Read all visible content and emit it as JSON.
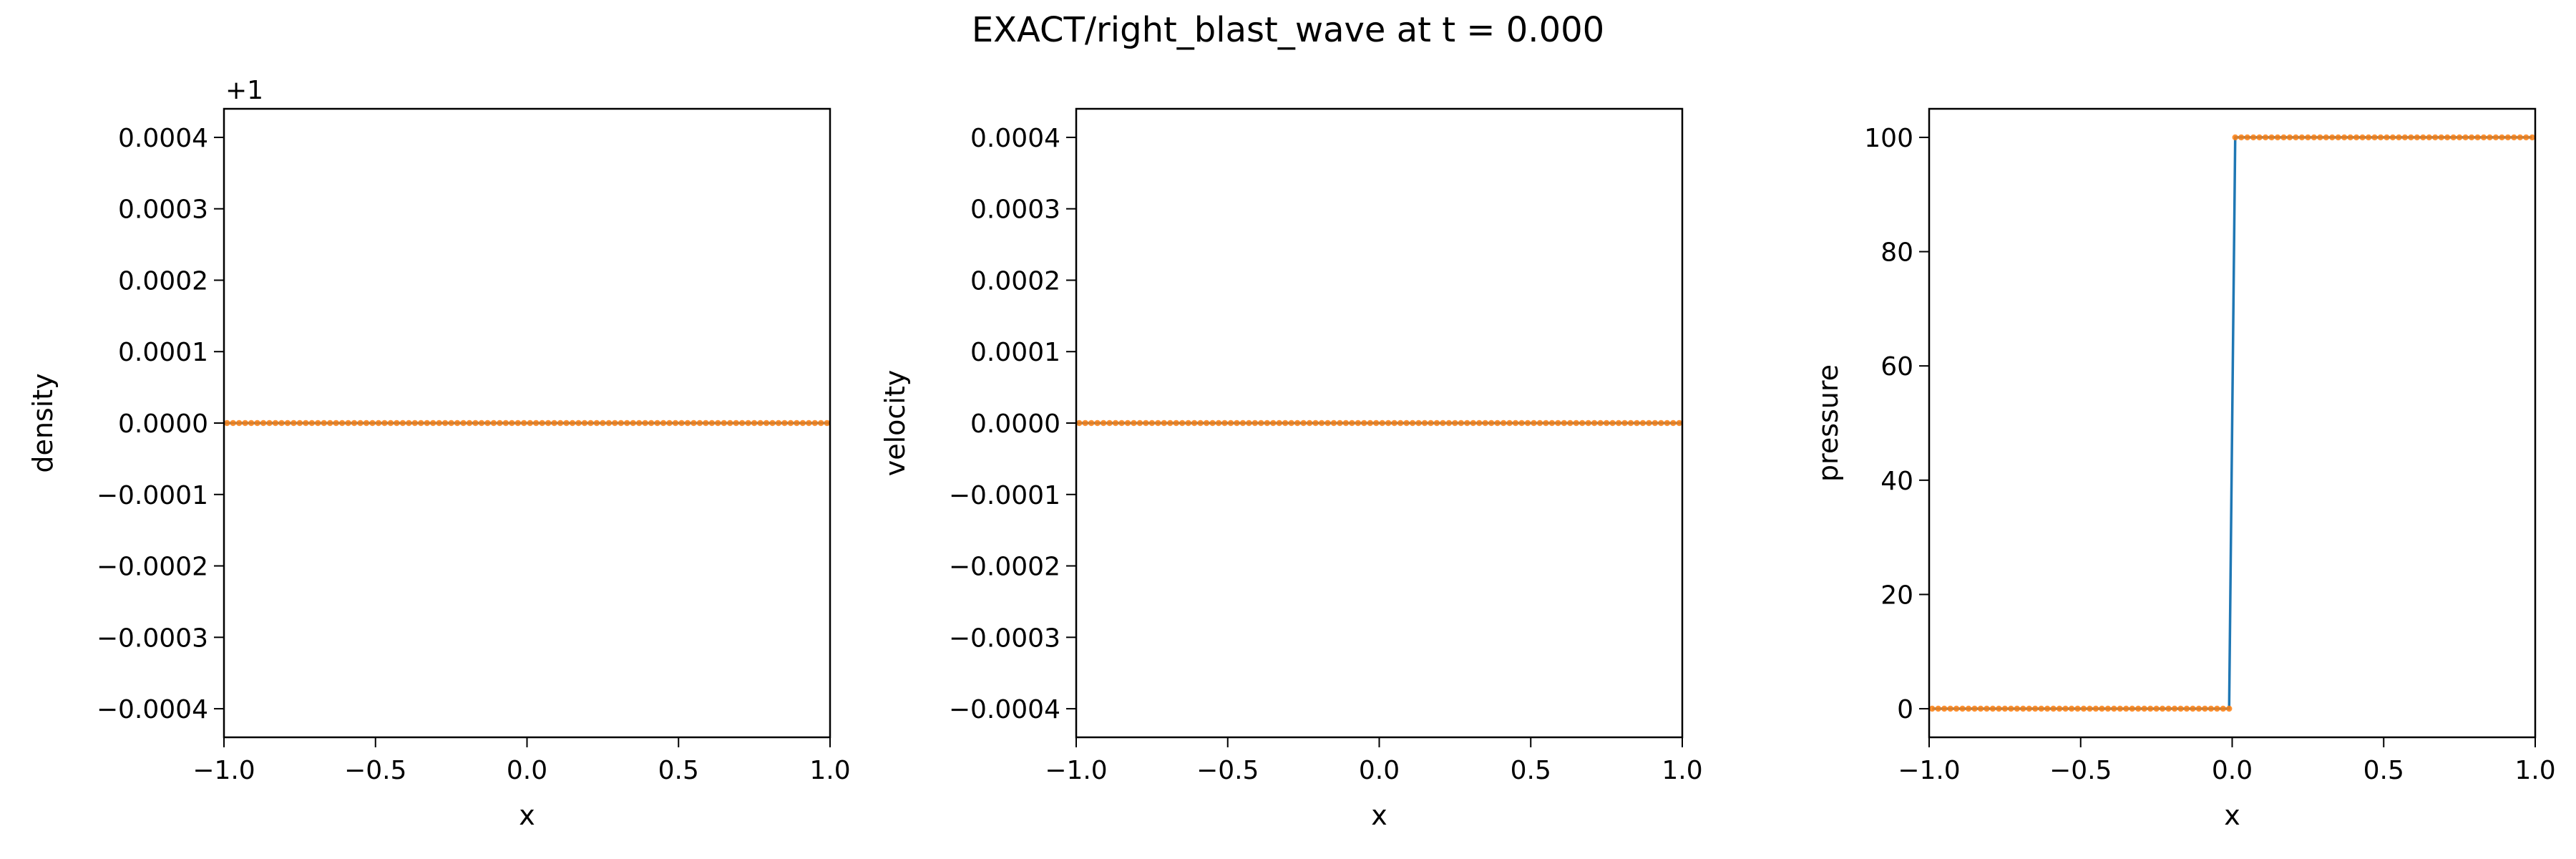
{
  "figure": {
    "title": "EXACT/right_blast_wave at t = 0.000"
  },
  "colors": {
    "line": "#1f77b4",
    "marker": "#ff7f0e",
    "axis": "#000000",
    "background": "#ffffff"
  },
  "chart_data": [
    {
      "type": "line",
      "title": "",
      "xlabel": "x",
      "ylabel": "density",
      "offset_text": "+1",
      "xlim": [
        -1.0,
        1.0
      ],
      "ylim": [
        -0.00044,
        0.00044
      ],
      "xticks": [
        -1.0,
        -0.5,
        0.0,
        0.5,
        1.0
      ],
      "xtick_labels": [
        "−1.0",
        "−0.5",
        "0.0",
        "0.5",
        "1.0"
      ],
      "yticks": [
        -0.0004,
        -0.0003,
        -0.0002,
        -0.0001,
        0.0,
        0.0001,
        0.0002,
        0.0003,
        0.0004
      ],
      "ytick_labels": [
        "−0.0004",
        "−0.0003",
        "−0.0002",
        "−0.0001",
        "0.0000",
        "0.0001",
        "0.0002",
        "0.0003",
        "0.0004"
      ],
      "grid": false,
      "series": [
        {
          "style": "line",
          "x": [
            -1.0,
            1.0
          ],
          "y": [
            0.0,
            0.0
          ]
        },
        {
          "style": "markers",
          "x_range": [
            -0.99,
            0.99
          ],
          "count": 100,
          "y_left": 0.0,
          "y_right": 0.0
        }
      ]
    },
    {
      "type": "line",
      "title": "",
      "xlabel": "x",
      "ylabel": "velocity",
      "offset_text": "",
      "xlim": [
        -1.0,
        1.0
      ],
      "ylim": [
        -0.00044,
        0.00044
      ],
      "xticks": [
        -1.0,
        -0.5,
        0.0,
        0.5,
        1.0
      ],
      "xtick_labels": [
        "−1.0",
        "−0.5",
        "0.0",
        "0.5",
        "1.0"
      ],
      "yticks": [
        -0.0004,
        -0.0003,
        -0.0002,
        -0.0001,
        0.0,
        0.0001,
        0.0002,
        0.0003,
        0.0004
      ],
      "ytick_labels": [
        "−0.0004",
        "−0.0003",
        "−0.0002",
        "−0.0001",
        "0.0000",
        "0.0001",
        "0.0002",
        "0.0003",
        "0.0004"
      ],
      "grid": false,
      "series": [
        {
          "style": "line",
          "x": [
            -1.0,
            1.0
          ],
          "y": [
            0.0,
            0.0
          ]
        },
        {
          "style": "markers",
          "x_range": [
            -0.99,
            0.99
          ],
          "count": 100,
          "y_left": 0.0,
          "y_right": 0.0
        }
      ]
    },
    {
      "type": "line",
      "title": "",
      "xlabel": "x",
      "ylabel": "pressure",
      "offset_text": "",
      "xlim": [
        -1.0,
        1.0
      ],
      "ylim": [
        -5.0,
        105.0
      ],
      "xticks": [
        -1.0,
        -0.5,
        0.0,
        0.5,
        1.0
      ],
      "xtick_labels": [
        "−1.0",
        "−0.5",
        "0.0",
        "0.5",
        "1.0"
      ],
      "yticks": [
        0,
        20,
        40,
        60,
        80,
        100
      ],
      "ytick_labels": [
        "0",
        "20",
        "40",
        "60",
        "80",
        "100"
      ],
      "grid": false,
      "series": [
        {
          "style": "line",
          "x": [
            -0.99,
            -0.01,
            0.01,
            0.99
          ],
          "y": [
            0.01,
            0.01,
            100.0,
            100.0
          ]
        },
        {
          "style": "markers",
          "x_range": [
            -0.99,
            0.99
          ],
          "count": 100,
          "y_left": 0.01,
          "y_right": 100.0
        }
      ]
    }
  ]
}
